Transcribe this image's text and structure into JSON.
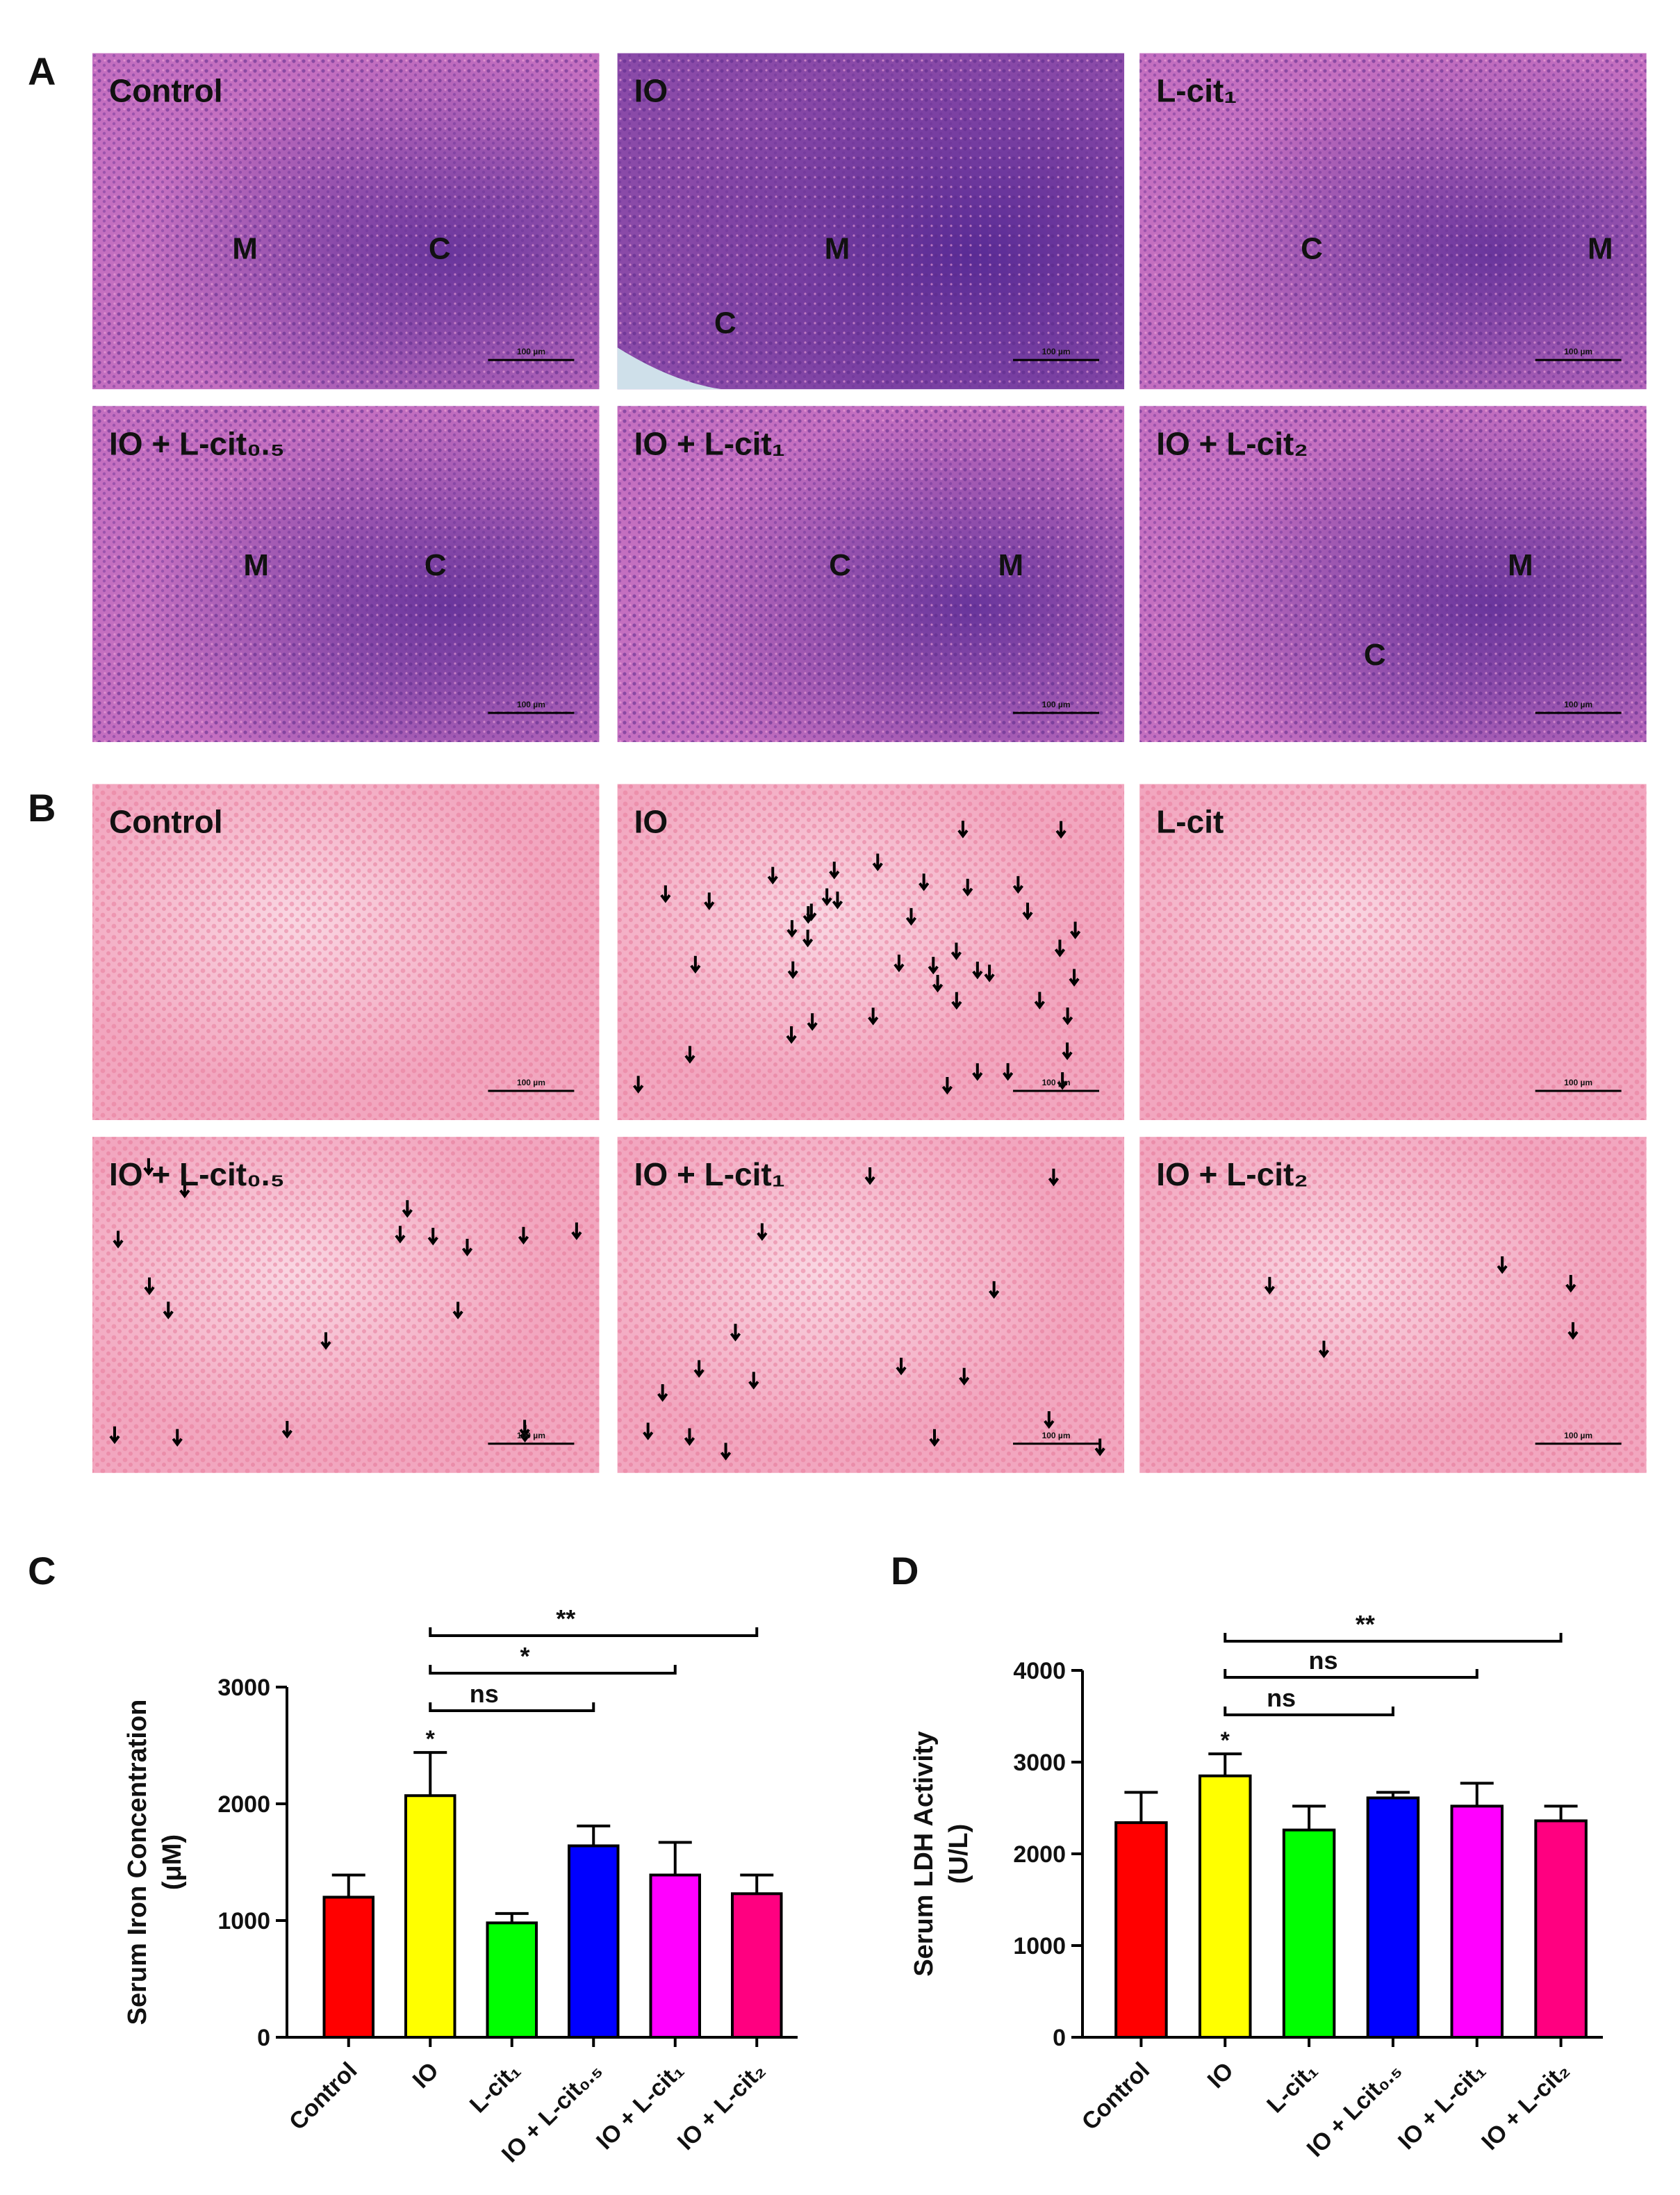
{
  "panel_a": {
    "letter": "A",
    "images": [
      {
        "label": "Control",
        "markers": [
          "M",
          "C"
        ],
        "scale_bar": "100 µm"
      },
      {
        "label": "IO",
        "markers": [
          "M",
          "C"
        ],
        "scale_bar": "100 µm"
      },
      {
        "label": "L-cit₁",
        "markers": [
          "C",
          "M"
        ],
        "scale_bar": "100 µm"
      },
      {
        "label": "IO + L-cit₀.₅",
        "markers": [
          "M",
          "C"
        ],
        "scale_bar": "100 µm"
      },
      {
        "label": "IO + L-cit₁",
        "markers": [
          "C",
          "M"
        ],
        "scale_bar": "100 µm"
      },
      {
        "label": "IO + L-cit₂",
        "markers": [
          "M",
          "C"
        ],
        "scale_bar": "100 µm"
      }
    ]
  },
  "panel_b": {
    "letter": "B",
    "images": [
      {
        "label": "Control",
        "scale_bar": "100 µm"
      },
      {
        "label": "IO",
        "scale_bar": "100 µm"
      },
      {
        "label": "L-cit",
        "scale_bar": "100 µm"
      },
      {
        "label": "IO + L-cit₀.₅",
        "scale_bar": "100 µm"
      },
      {
        "label": "IO + L-cit₁",
        "scale_bar": "100 µm"
      },
      {
        "label": "IO + L-cit₂",
        "scale_bar": "100 µm"
      }
    ]
  },
  "chart_data": [
    {
      "type": "bar",
      "panel": "C",
      "ylabel": [
        "Serum Iron Concentration",
        "(μM)"
      ],
      "categories": [
        "Control",
        "IO",
        "L-cit₁",
        "IO + L-cit₀.₅",
        "IO + L-cit₁",
        "IO + L-cit₂"
      ],
      "values": [
        1200,
        2070,
        980,
        1640,
        1390,
        1230
      ],
      "errors": [
        190,
        370,
        80,
        170,
        280,
        160
      ],
      "colors": [
        "#ff0000",
        "#ffff00",
        "#00ff00",
        "#0000ff",
        "#ff00ff",
        "#ff0080"
      ],
      "ylim": [
        0,
        3000
      ],
      "yticks": [
        0,
        1000,
        2000,
        3000
      ],
      "annotations": [
        {
          "text": "*",
          "category": "IO"
        }
      ],
      "brackets": [
        {
          "text": "ns",
          "from": "IO",
          "to": "IO + L-cit₀.₅"
        },
        {
          "text": "*",
          "from": "IO",
          "to": "IO + L-cit₁"
        },
        {
          "text": "**",
          "from": "IO",
          "to": "IO + L-cit₂"
        }
      ]
    },
    {
      "type": "bar",
      "panel": "D",
      "ylabel": [
        "Serum LDH Activity",
        "(U/L)"
      ],
      "categories": [
        "Control",
        "IO",
        "L-cit₁",
        "IO + Lcit₀.₅",
        "IO + L-cit₁",
        "IO + L-cit₂"
      ],
      "values": [
        2340,
        2850,
        2260,
        2610,
        2520,
        2360
      ],
      "errors": [
        330,
        240,
        260,
        60,
        250,
        160
      ],
      "colors": [
        "#ff0000",
        "#ffff00",
        "#00ff00",
        "#0000ff",
        "#ff00ff",
        "#ff0080"
      ],
      "ylim": [
        0,
        4000
      ],
      "yticks": [
        0,
        1000,
        2000,
        3000,
        4000
      ],
      "annotations": [
        {
          "text": "*",
          "category": "IO"
        }
      ],
      "brackets": [
        {
          "text": "ns",
          "from": "IO",
          "to": "IO + Lcit₀.₅"
        },
        {
          "text": "ns",
          "from": "IO",
          "to": "IO + L-cit₁"
        },
        {
          "text": "**",
          "from": "IO",
          "to": "IO + L-cit₂"
        }
      ]
    }
  ]
}
